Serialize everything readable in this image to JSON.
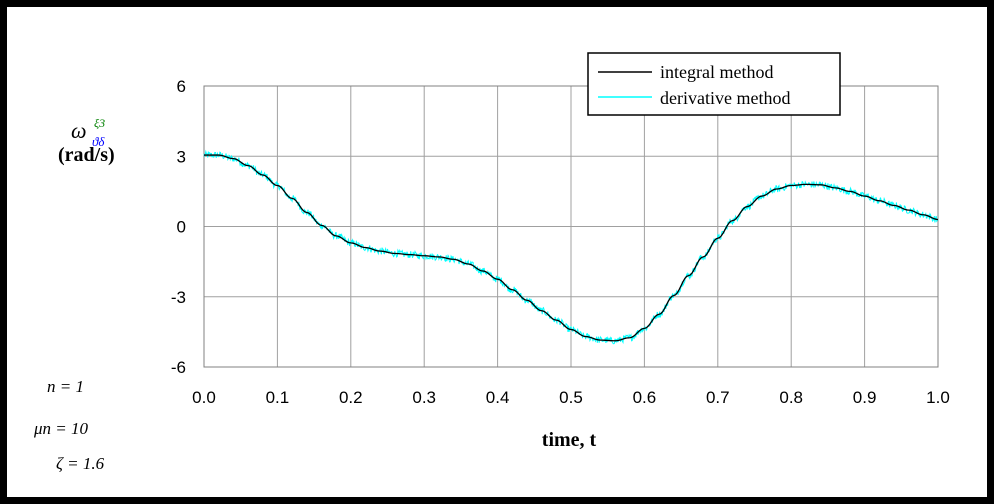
{
  "chart_data": {
    "type": "line",
    "xlabel": "time, t",
    "ylabel_symbol": "ω",
    "ylabel_superscript": "ξ3",
    "ylabel_subscript": "ϑδ",
    "ylabel_units": "(rad/s)",
    "xlim": [
      0.0,
      1.0
    ],
    "ylim": [
      -6,
      6
    ],
    "xticks": [
      "0.0",
      "0.1",
      "0.2",
      "0.3",
      "0.4",
      "0.5",
      "0.6",
      "0.7",
      "0.8",
      "0.9",
      "1.0"
    ],
    "yticks": [
      "6",
      "3",
      "0",
      "-3",
      "-6"
    ],
    "grid": true,
    "legend_position": "top-right",
    "series": [
      {
        "name": "integral method",
        "color": "#000000",
        "x": [
          0.0,
          0.02,
          0.04,
          0.06,
          0.08,
          0.1,
          0.12,
          0.14,
          0.16,
          0.18,
          0.2,
          0.22,
          0.24,
          0.26,
          0.28,
          0.3,
          0.32,
          0.34,
          0.36,
          0.38,
          0.4,
          0.42,
          0.44,
          0.46,
          0.48,
          0.5,
          0.52,
          0.54,
          0.56,
          0.58,
          0.6,
          0.62,
          0.64,
          0.66,
          0.68,
          0.7,
          0.72,
          0.74,
          0.76,
          0.78,
          0.8,
          0.82,
          0.84,
          0.86,
          0.88,
          0.9,
          0.92,
          0.94,
          0.96,
          0.98,
          1.0
        ],
        "y": [
          3.05,
          3.05,
          2.9,
          2.6,
          2.2,
          1.75,
          1.2,
          0.6,
          0.05,
          -0.4,
          -0.7,
          -0.9,
          -1.05,
          -1.15,
          -1.2,
          -1.25,
          -1.3,
          -1.4,
          -1.6,
          -1.9,
          -2.25,
          -2.7,
          -3.15,
          -3.6,
          -4.0,
          -4.4,
          -4.7,
          -4.85,
          -4.88,
          -4.75,
          -4.35,
          -3.75,
          -2.95,
          -2.1,
          -1.3,
          -0.5,
          0.25,
          0.85,
          1.3,
          1.6,
          1.75,
          1.8,
          1.78,
          1.65,
          1.5,
          1.3,
          1.1,
          0.9,
          0.7,
          0.5,
          0.3
        ]
      },
      {
        "name": "derivative method",
        "color": "#00FFFF",
        "x": [
          0.0,
          0.02,
          0.04,
          0.06,
          0.08,
          0.1,
          0.12,
          0.14,
          0.16,
          0.18,
          0.2,
          0.22,
          0.24,
          0.26,
          0.28,
          0.3,
          0.32,
          0.34,
          0.36,
          0.38,
          0.4,
          0.42,
          0.44,
          0.46,
          0.48,
          0.5,
          0.52,
          0.54,
          0.56,
          0.58,
          0.6,
          0.62,
          0.64,
          0.66,
          0.68,
          0.7,
          0.72,
          0.74,
          0.76,
          0.78,
          0.8,
          0.82,
          0.84,
          0.86,
          0.88,
          0.9,
          0.92,
          0.94,
          0.96,
          0.98,
          1.0
        ],
        "y": [
          3.05,
          3.05,
          2.9,
          2.6,
          2.2,
          1.75,
          1.2,
          0.6,
          0.05,
          -0.4,
          -0.7,
          -0.9,
          -1.05,
          -1.15,
          -1.2,
          -1.25,
          -1.3,
          -1.4,
          -1.6,
          -1.9,
          -2.25,
          -2.7,
          -3.15,
          -3.6,
          -4.0,
          -4.4,
          -4.7,
          -4.85,
          -4.88,
          -4.75,
          -4.35,
          -3.75,
          -2.95,
          -2.1,
          -1.3,
          -0.5,
          0.25,
          0.85,
          1.3,
          1.6,
          1.75,
          1.8,
          1.78,
          1.65,
          1.5,
          1.3,
          1.1,
          0.9,
          0.7,
          0.5,
          0.3
        ],
        "noise_amplitude": 0.15
      }
    ]
  },
  "parameters": {
    "n_label": "n = 1",
    "mu_label": "μn = 10",
    "zeta_label": "ζ = 1.6"
  }
}
